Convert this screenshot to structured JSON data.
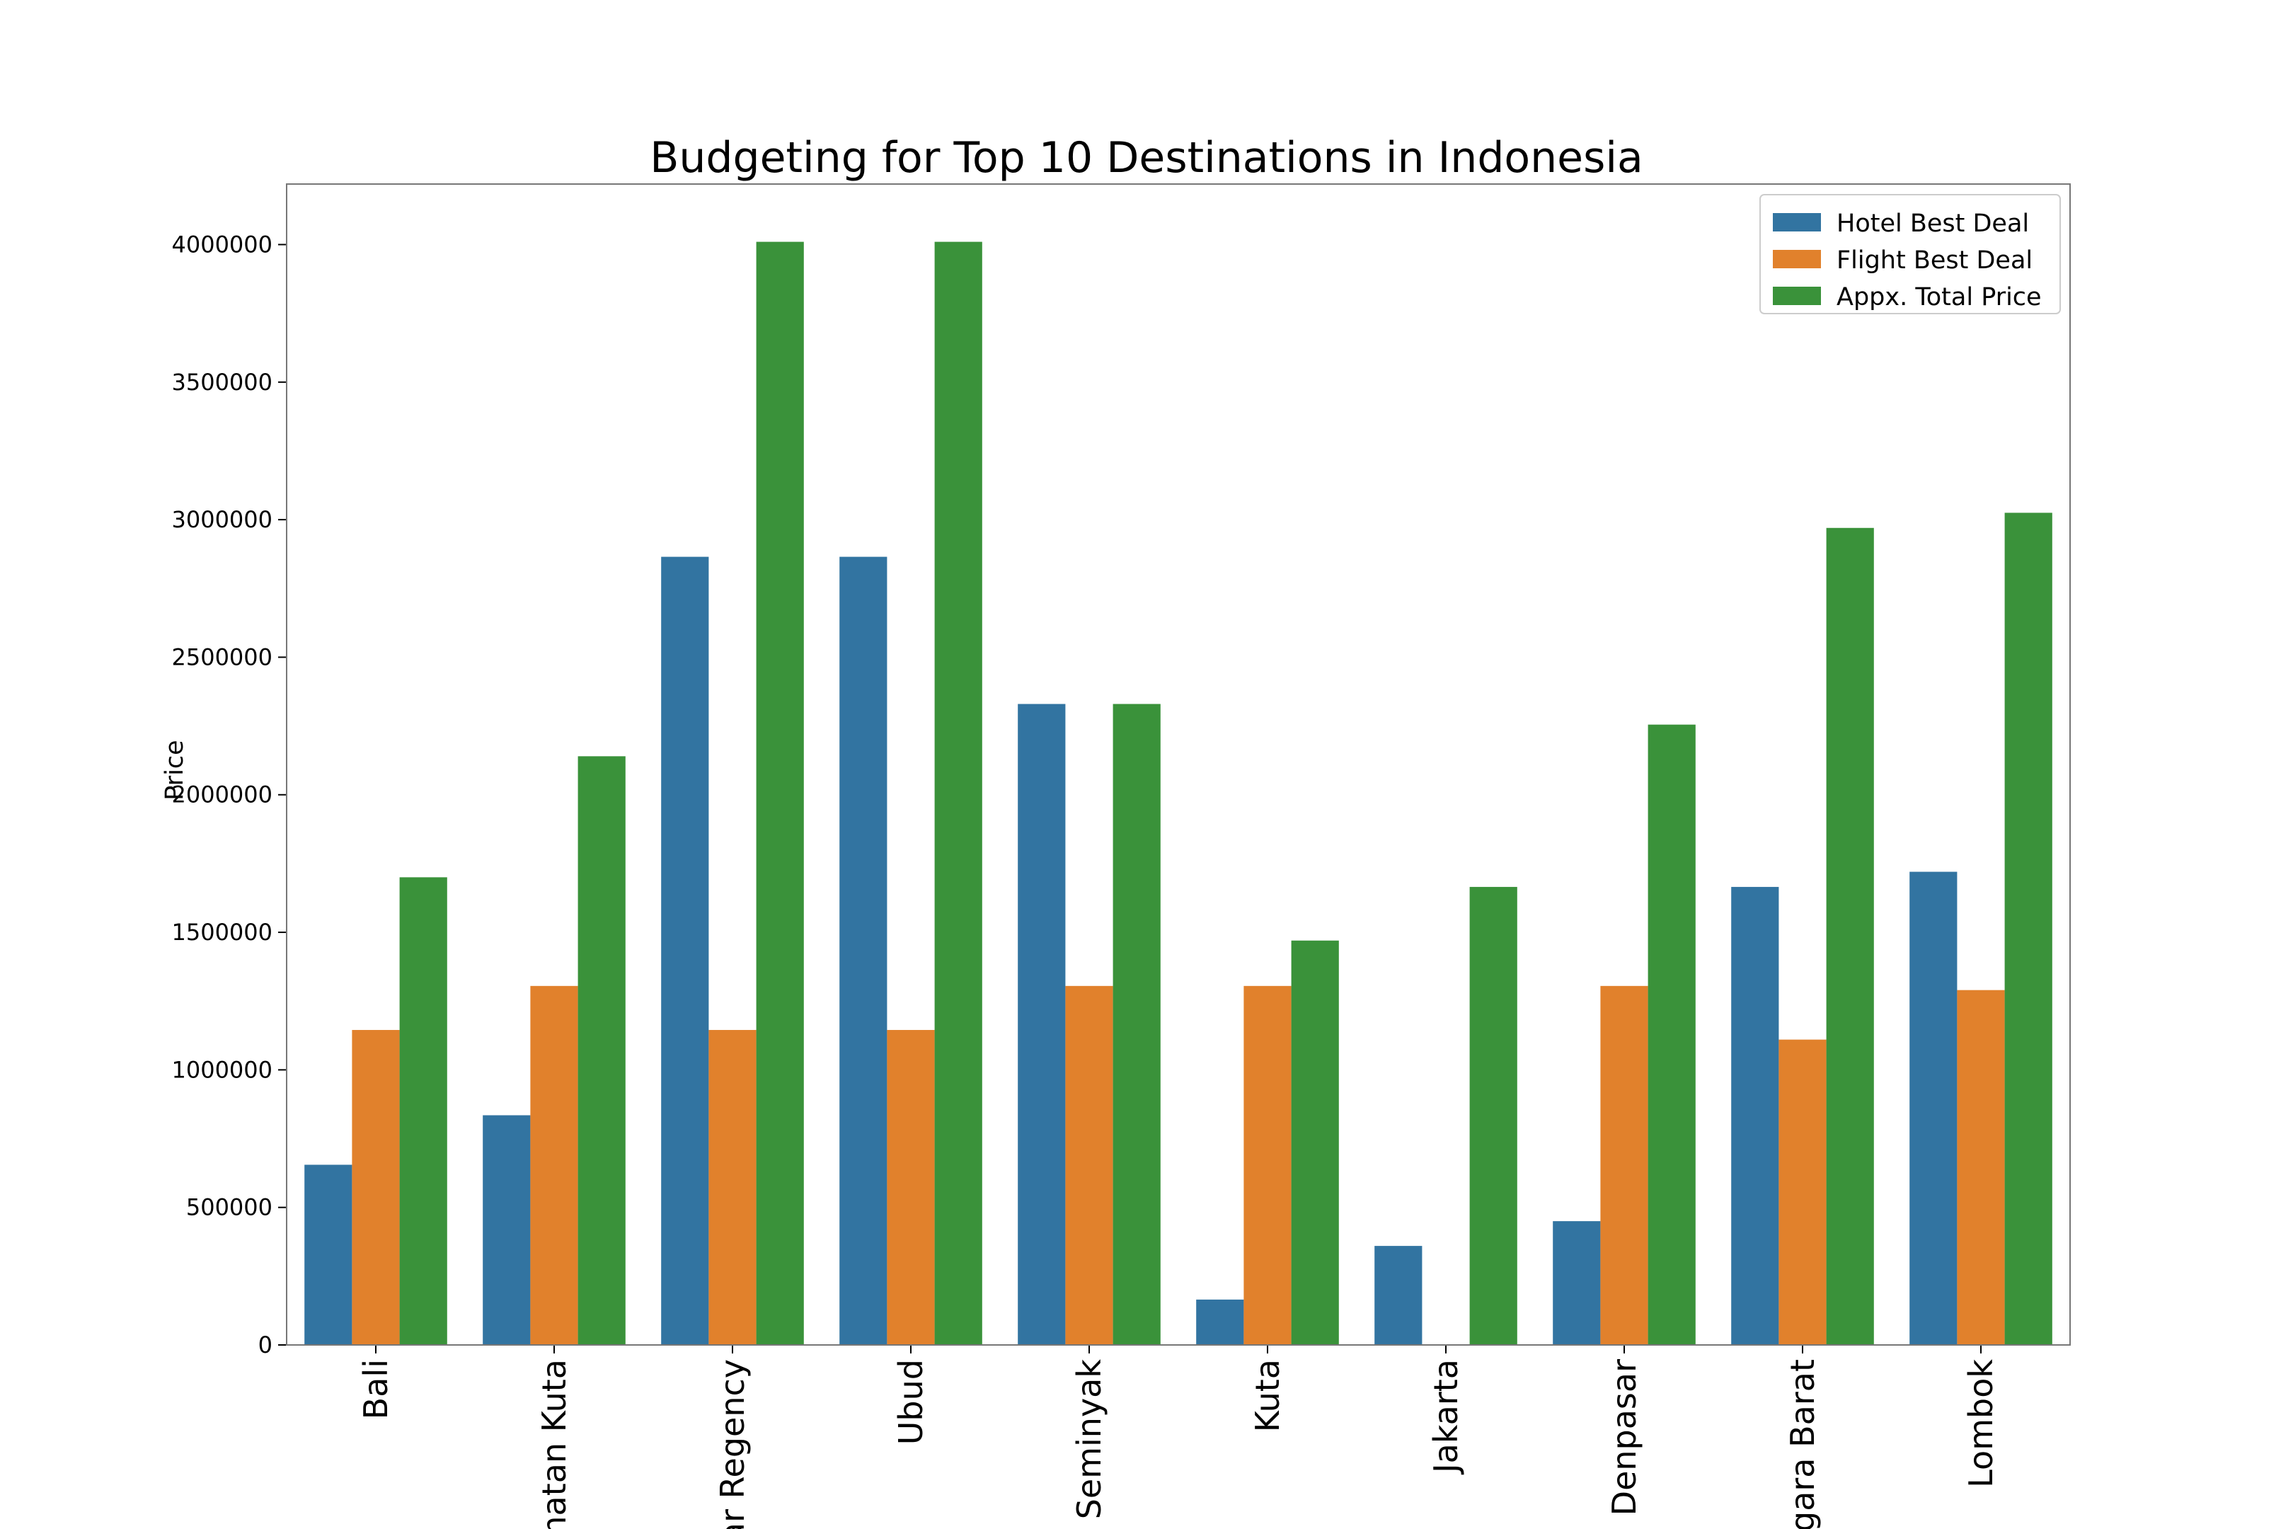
{
  "chart_data": {
    "type": "bar",
    "title": "Budgeting for Top 10 Destinations in Indonesia",
    "xlabel": "",
    "ylabel": "Price",
    "ylim": [
      0,
      4220000
    ],
    "yticks": [
      0,
      500000,
      1000000,
      1500000,
      2000000,
      2500000,
      3000000,
      3500000,
      4000000
    ],
    "ytick_labels": [
      "0",
      "500000",
      "1000000",
      "1500000",
      "2000000",
      "2500000",
      "3000000",
      "3500000",
      "4000000"
    ],
    "categories": [
      "Bali",
      "matan Kuta",
      "ar Regency",
      "Ubud",
      "Seminyak",
      "Kuta",
      "Jakarta",
      "Denpasar",
      "ggara Barat",
      "Lombok"
    ],
    "series": [
      {
        "name": "Hotel Best Deal",
        "color": "#3274a1",
        "values": [
          655000,
          835000,
          2865000,
          2865000,
          2330000,
          165000,
          360000,
          450000,
          1665000,
          1720000
        ]
      },
      {
        "name": "Flight Best Deal",
        "color": "#e1812c",
        "values": [
          1145000,
          1305000,
          1145000,
          1145000,
          1305000,
          1305000,
          0,
          1305000,
          1110000,
          1290000
        ]
      },
      {
        "name": "Appx. Total Price",
        "color": "#3a923a",
        "values": [
          1700000,
          2140000,
          4010000,
          4010000,
          2330000,
          1470000,
          1665000,
          2255000,
          2970000,
          3025000
        ]
      }
    ],
    "grid": false,
    "legend_position": "top-right"
  }
}
